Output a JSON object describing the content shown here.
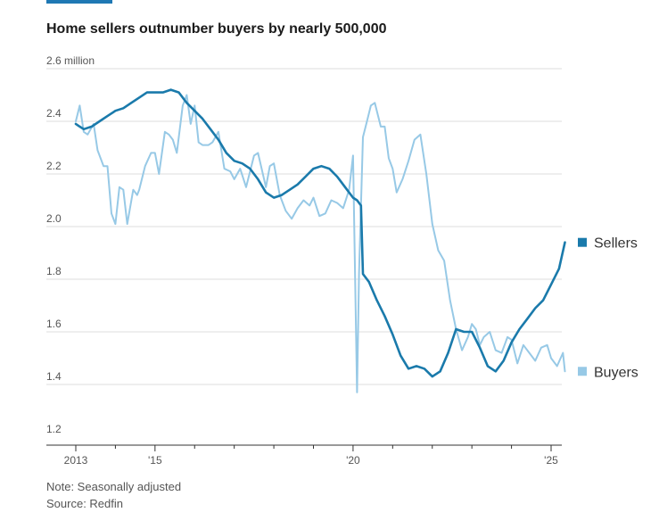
{
  "title": "Home sellers outnumber buyers by nearly 500,000",
  "note": "Note: Seasonally adjusted",
  "source": "Source: Redfin",
  "colors": {
    "sellers": "#1a7aab",
    "buyers": "#97c9e6",
    "grid": "#dddddd",
    "axis": "#333333"
  },
  "chart_data": {
    "type": "line",
    "title": "Home sellers outnumber buyers by nearly 500,000",
    "ylabel": "",
    "y_unit_label": "2.6 million",
    "ylim": [
      1.2,
      2.6
    ],
    "xlim": [
      2013,
      2025.4
    ],
    "yticks": [
      {
        "value": 2.6,
        "label": "2.6 million"
      },
      {
        "value": 2.4,
        "label": "2.4"
      },
      {
        "value": 2.2,
        "label": "2.2"
      },
      {
        "value": 2.0,
        "label": "2.0"
      },
      {
        "value": 1.8,
        "label": "1.8"
      },
      {
        "value": 1.6,
        "label": "1.6"
      },
      {
        "value": 1.4,
        "label": "1.4"
      },
      {
        "value": 1.2,
        "label": "1.2"
      }
    ],
    "xticks": [
      {
        "value": 2013,
        "label": "2013"
      },
      {
        "value": 2015,
        "label": "'15"
      },
      {
        "value": 2020,
        "label": "'20"
      },
      {
        "value": 2025,
        "label": "'25"
      }
    ],
    "minor_xticks": [
      2014,
      2016,
      2017,
      2018,
      2019,
      2021,
      2022,
      2023,
      2024
    ],
    "grid": true,
    "legend_position": "right, labels at series ends",
    "series": [
      {
        "name": "Sellers",
        "x": [
          2013.0,
          2013.1,
          2013.2,
          2013.4,
          2013.6,
          2013.8,
          2014.0,
          2014.2,
          2014.4,
          2014.6,
          2014.8,
          2015.0,
          2015.2,
          2015.4,
          2015.6,
          2015.8,
          2016.0,
          2016.2,
          2016.4,
          2016.6,
          2016.8,
          2017.0,
          2017.2,
          2017.4,
          2017.6,
          2017.8,
          2018.0,
          2018.2,
          2018.4,
          2018.6,
          2018.8,
          2019.0,
          2019.2,
          2019.4,
          2019.6,
          2019.8,
          2020.0,
          2020.1,
          2020.2,
          2020.25,
          2020.4,
          2020.6,
          2020.8,
          2021.0,
          2021.2,
          2021.4,
          2021.6,
          2021.8,
          2022.0,
          2022.2,
          2022.4,
          2022.6,
          2022.8,
          2023.0,
          2023.2,
          2023.4,
          2023.6,
          2023.8,
          2024.0,
          2024.2,
          2024.4,
          2024.6,
          2024.8,
          2025.0,
          2025.2,
          2025.35
        ],
        "values": [
          2.39,
          2.38,
          2.37,
          2.38,
          2.4,
          2.42,
          2.44,
          2.45,
          2.47,
          2.49,
          2.51,
          2.51,
          2.51,
          2.52,
          2.51,
          2.47,
          2.44,
          2.41,
          2.37,
          2.33,
          2.28,
          2.25,
          2.24,
          2.22,
          2.18,
          2.13,
          2.11,
          2.12,
          2.14,
          2.16,
          2.19,
          2.22,
          2.23,
          2.22,
          2.19,
          2.15,
          2.11,
          2.1,
          2.08,
          1.82,
          1.79,
          1.72,
          1.66,
          1.59,
          1.51,
          1.46,
          1.47,
          1.46,
          1.43,
          1.45,
          1.52,
          1.61,
          1.6,
          1.6,
          1.54,
          1.47,
          1.45,
          1.49,
          1.56,
          1.61,
          1.65,
          1.69,
          1.72,
          1.78,
          1.84,
          1.94
        ]
      },
      {
        "name": "Buyers",
        "x": [
          2013.0,
          2013.1,
          2013.2,
          2013.3,
          2013.45,
          2013.55,
          2013.7,
          2013.8,
          2013.9,
          2014.0,
          2014.1,
          2014.2,
          2014.3,
          2014.45,
          2014.55,
          2014.6,
          2014.75,
          2014.9,
          2015.0,
          2015.1,
          2015.25,
          2015.35,
          2015.45,
          2015.55,
          2015.7,
          2015.8,
          2015.9,
          2016.0,
          2016.1,
          2016.2,
          2016.35,
          2016.45,
          2016.6,
          2016.75,
          2016.9,
          2017.0,
          2017.15,
          2017.3,
          2017.5,
          2017.6,
          2017.8,
          2017.9,
          2018.0,
          2018.15,
          2018.3,
          2018.45,
          2018.6,
          2018.75,
          2018.9,
          2019.0,
          2019.15,
          2019.3,
          2019.45,
          2019.6,
          2019.75,
          2019.9,
          2020.0,
          2020.1,
          2020.15,
          2020.25,
          2020.35,
          2020.45,
          2020.55,
          2020.7,
          2020.8,
          2020.9,
          2021.0,
          2021.1,
          2021.25,
          2021.4,
          2021.55,
          2021.7,
          2021.85,
          2022.0,
          2022.15,
          2022.3,
          2022.45,
          2022.6,
          2022.75,
          2022.9,
          2023.0,
          2023.1,
          2023.2,
          2023.3,
          2023.45,
          2023.6,
          2023.75,
          2023.9,
          2024.0,
          2024.15,
          2024.3,
          2024.45,
          2024.6,
          2024.75,
          2024.9,
          2025.0,
          2025.15,
          2025.3,
          2025.35
        ],
        "values": [
          2.4,
          2.46,
          2.36,
          2.35,
          2.39,
          2.29,
          2.23,
          2.23,
          2.05,
          2.01,
          2.15,
          2.14,
          2.01,
          2.14,
          2.12,
          2.14,
          2.23,
          2.28,
          2.28,
          2.2,
          2.36,
          2.35,
          2.33,
          2.28,
          2.46,
          2.5,
          2.39,
          2.46,
          2.32,
          2.31,
          2.31,
          2.32,
          2.36,
          2.22,
          2.21,
          2.18,
          2.22,
          2.15,
          2.27,
          2.28,
          2.15,
          2.23,
          2.24,
          2.12,
          2.06,
          2.03,
          2.07,
          2.1,
          2.08,
          2.11,
          2.04,
          2.05,
          2.1,
          2.09,
          2.07,
          2.14,
          2.27,
          1.37,
          1.82,
          2.34,
          2.4,
          2.46,
          2.47,
          2.38,
          2.38,
          2.26,
          2.22,
          2.13,
          2.18,
          2.25,
          2.33,
          2.35,
          2.2,
          2.01,
          1.91,
          1.87,
          1.72,
          1.61,
          1.53,
          1.58,
          1.63,
          1.61,
          1.55,
          1.58,
          1.6,
          1.53,
          1.52,
          1.58,
          1.57,
          1.48,
          1.55,
          1.52,
          1.49,
          1.54,
          1.55,
          1.5,
          1.47,
          1.52,
          1.45
        ]
      }
    ]
  }
}
